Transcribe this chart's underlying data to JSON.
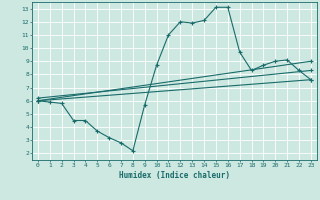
{
  "xlabel": "Humidex (Indice chaleur)",
  "bg_color": "#cce8e0",
  "grid_color": "#ffffff",
  "line_color": "#1a6b6b",
  "xlim": [
    -0.5,
    23.5
  ],
  "ylim": [
    1.5,
    13.5
  ],
  "xticks": [
    0,
    1,
    2,
    3,
    4,
    5,
    6,
    7,
    8,
    9,
    10,
    11,
    12,
    13,
    14,
    15,
    16,
    17,
    18,
    19,
    20,
    21,
    22,
    23
  ],
  "yticks": [
    2,
    3,
    4,
    5,
    6,
    7,
    8,
    9,
    10,
    11,
    12,
    13
  ],
  "line1": {
    "x": [
      0,
      1,
      2,
      3,
      4,
      5,
      6,
      7,
      8,
      9,
      10,
      11,
      12,
      13,
      14,
      15,
      16,
      17,
      18,
      19,
      20,
      21,
      22,
      23
    ],
    "y": [
      6.0,
      5.9,
      5.8,
      4.5,
      4.5,
      3.7,
      3.2,
      2.8,
      2.2,
      5.7,
      8.7,
      11.0,
      12.0,
      11.9,
      12.1,
      13.1,
      13.1,
      9.7,
      8.3,
      8.7,
      9.0,
      9.1,
      8.3,
      7.6
    ]
  },
  "line2": {
    "x": [
      0,
      23
    ],
    "y": [
      6.0,
      9.0
    ]
  },
  "line3": {
    "x": [
      0,
      23
    ],
    "y": [
      6.0,
      7.6
    ]
  },
  "line4": {
    "x": [
      0,
      23
    ],
    "y": [
      6.2,
      8.3
    ]
  }
}
